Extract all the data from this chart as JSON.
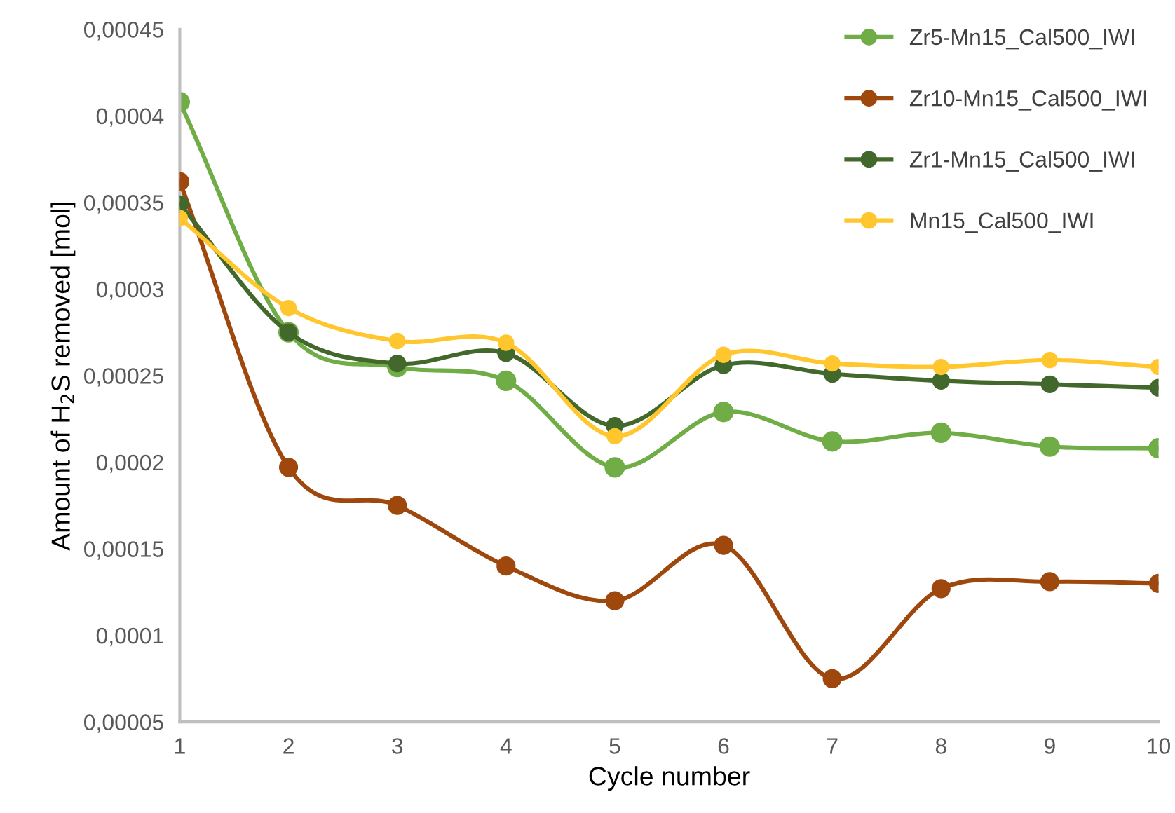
{
  "chart_data": {
    "type": "line",
    "xlabel": "Cycle number",
    "ylabel": "Amount of H$_{2}$S removed [mol]",
    "x": [
      1,
      2,
      3,
      4,
      5,
      6,
      7,
      8,
      9,
      10
    ],
    "xlim": [
      1,
      10
    ],
    "xticks": [
      1,
      2,
      3,
      4,
      5,
      6,
      7,
      8,
      9,
      10
    ],
    "ylim": [
      5e-05,
      0.00045
    ],
    "yticks": [
      {
        "value": 5e-05,
        "label": "0,00005"
      },
      {
        "value": 0.0001,
        "label": "0,0001"
      },
      {
        "value": 0.00015,
        "label": "0,00015"
      },
      {
        "value": 0.0002,
        "label": "0,0002"
      },
      {
        "value": 0.00025,
        "label": "0,00025"
      },
      {
        "value": 0.0003,
        "label": "0,0003"
      },
      {
        "value": 0.00035,
        "label": "0,00035"
      },
      {
        "value": 0.0004,
        "label": "0,0004"
      },
      {
        "value": 0.00045,
        "label": "0,00045"
      }
    ],
    "grid": false,
    "legend": "top right",
    "marker": "circle",
    "line_style": "solid",
    "series": [
      {
        "name": "Zr5-Mn15_Cal500_IWI",
        "color": "#70ad47",
        "values": [
          0.000408,
          0.000275,
          0.000255,
          0.000247,
          0.000197,
          0.000229,
          0.000212,
          0.000217,
          0.000209,
          0.000208
        ]
      },
      {
        "name": "Zr10-Mn15_Cal500_IWI",
        "color": "#9e480e",
        "values": [
          0.000362,
          0.000197,
          0.000175,
          0.00014,
          0.00012,
          0.000152,
          7.5e-05,
          0.000127,
          0.000131,
          0.00013
        ]
      },
      {
        "name": "Zr1-Mn15_Cal500_IWI",
        "color": "#43682b",
        "values": [
          0.000349,
          0.000275,
          0.000257,
          0.000263,
          0.000221,
          0.000256,
          0.000251,
          0.000247,
          0.000245,
          0.000243
        ]
      },
      {
        "name": "Mn15_Cal500_IWI",
        "color": "#ffc62e",
        "values": [
          0.000341,
          0.000289,
          0.00027,
          0.000269,
          0.000215,
          0.000262,
          0.000257,
          0.000255,
          0.000259,
          0.000255
        ]
      }
    ]
  }
}
